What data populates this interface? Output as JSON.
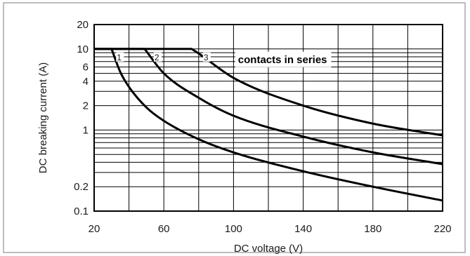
{
  "chart_data": {
    "type": "line",
    "title": "",
    "xlabel": "DC voltage (V)",
    "ylabel": "DC breaking current (A)",
    "xlim": [
      20,
      220
    ],
    "ylim": [
      0.1,
      20
    ],
    "yscale": "log",
    "grid": true,
    "x_ticks": [
      20,
      60,
      100,
      140,
      180,
      220
    ],
    "y_ticks": [
      20,
      10,
      6,
      4,
      2,
      1,
      0.2,
      0.1
    ],
    "annotation": "contacts in series",
    "series": [
      {
        "name": "1",
        "x": [
          20,
          30,
          35,
          40,
          50,
          60,
          80,
          100,
          140,
          180,
          220
        ],
        "y": [
          10,
          10,
          5.2,
          3.4,
          1.9,
          1.3,
          0.77,
          0.53,
          0.31,
          0.2,
          0.135
        ]
      },
      {
        "name": "2",
        "x": [
          20,
          49,
          60,
          80,
          100,
          140,
          180,
          220
        ],
        "y": [
          10,
          10,
          5.0,
          2.5,
          1.5,
          0.83,
          0.53,
          0.38
        ]
      },
      {
        "name": "3",
        "x": [
          20,
          76,
          80,
          100,
          140,
          180,
          220
        ],
        "y": [
          10,
          10,
          8.8,
          4.4,
          2.0,
          1.2,
          0.86
        ]
      }
    ]
  }
}
